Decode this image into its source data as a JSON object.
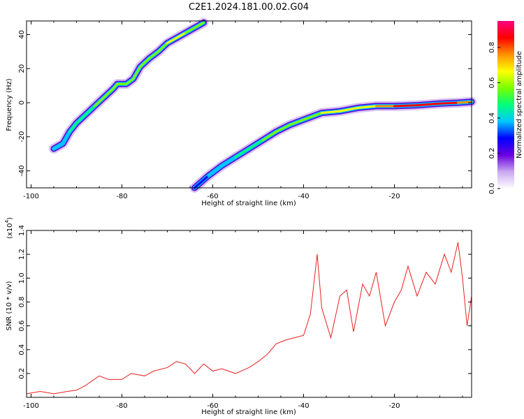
{
  "title": "C2E1.2024.181.00.02.G04",
  "chart_data": [
    {
      "type": "heatmap",
      "name": "spectrogram",
      "xlabel": "Height of straight line (km)",
      "ylabel": "Frequency (Hz)",
      "xlim": [
        -101,
        -3
      ],
      "ylim": [
        -50,
        48
      ],
      "xticks": [
        "-100",
        "-80",
        "-60",
        "-40",
        "-20"
      ],
      "xtick_values": [
        -100,
        -80,
        -60,
        -40,
        -20
      ],
      "yticks": [
        "40",
        "20",
        "0",
        "-20",
        "-40"
      ],
      "ytick_values": [
        40,
        20,
        0,
        -20,
        -40
      ],
      "grid": false,
      "colorbar": {
        "label": "Normalized spectral amplitude",
        "range": [
          0,
          0.95
        ],
        "ticks": [
          "0.0",
          "0.2",
          "0.4",
          "0.6",
          "0.8"
        ],
        "tick_values": [
          0.0,
          0.2,
          0.4,
          0.6,
          0.8
        ],
        "colors": [
          "#ffffff",
          "#c9a8f0",
          "#6a00e0",
          "#0000ff",
          "#00c8ff",
          "#00ff7a",
          "#7aff00",
          "#ffff00",
          "#ff9000",
          "#ff0000",
          "#ff0080"
        ]
      },
      "tracks": [
        {
          "name": "track 1",
          "points": [
            [
              -95,
              -27
            ],
            [
              -93,
              -24
            ],
            [
              -91.5,
              -17
            ],
            [
              -90,
              -12
            ],
            [
              -88,
              -7
            ],
            [
              -86,
              -2
            ],
            [
              -84,
              3
            ],
            [
              -82,
              8
            ],
            [
              -81,
              11
            ],
            [
              -79,
              11
            ],
            [
              -77.5,
              14
            ],
            [
              -76,
              21
            ],
            [
              -74,
              26
            ],
            [
              -72,
              30
            ],
            [
              -70,
              35
            ],
            [
              -68,
              38
            ],
            [
              -66,
              41
            ],
            [
              -64,
              44
            ],
            [
              -62,
              47
            ]
          ],
          "amplitude": [
            0.35,
            0.4,
            0.45,
            0.5,
            0.52,
            0.5,
            0.55,
            0.55,
            0.6,
            0.6,
            0.55,
            0.58,
            0.62,
            0.6,
            0.62,
            0.65,
            0.62,
            0.6,
            0.58
          ]
        },
        {
          "name": "track 2",
          "points": [
            [
              -64,
              -50
            ],
            [
              -61,
              -43
            ],
            [
              -58,
              -37
            ],
            [
              -55,
              -32
            ],
            [
              -52,
              -27
            ],
            [
              -49,
              -22
            ],
            [
              -46,
              -17
            ],
            [
              -43,
              -13
            ],
            [
              -40,
              -10
            ],
            [
              -36,
              -6
            ],
            [
              -32,
              -5
            ],
            [
              -28,
              -3
            ],
            [
              -24,
              -2
            ],
            [
              -20,
              -2
            ],
            [
              -15,
              -1.5
            ],
            [
              -10,
              -0.5
            ],
            [
              -6,
              0
            ],
            [
              -3,
              0.5
            ]
          ],
          "amplitude": [
            0.3,
            0.35,
            0.4,
            0.45,
            0.5,
            0.52,
            0.55,
            0.58,
            0.6,
            0.62,
            0.65,
            0.68,
            0.72,
            0.8,
            0.85,
            0.88,
            0.85,
            0.7
          ]
        }
      ]
    },
    {
      "type": "line",
      "name": "snr",
      "xlabel": "Height of straight line (km)",
      "ylabel": "SNR (10 * v/v)",
      "yscale_label": "(x10",
      "yscale_exp": "4",
      "xlim": [
        -101,
        -3
      ],
      "ylim": [
        0,
        1.4
      ],
      "xticks": [
        "-100",
        "-80",
        "-60",
        "-40",
        "-20"
      ],
      "xtick_values": [
        -100,
        -80,
        -60,
        -40,
        -20
      ],
      "yticks": [
        "0.2",
        "0.4",
        "0.6",
        "0.8",
        "1.0",
        "1.2",
        "1.4"
      ],
      "ytick_values": [
        0.2,
        0.4,
        0.6,
        0.8,
        1.0,
        1.2,
        1.4
      ],
      "grid": false,
      "color": "#e8201e",
      "series": [
        {
          "x": [
            -101,
            -98,
            -95,
            -92,
            -90,
            -88,
            -85,
            -83,
            -80,
            -78,
            -75,
            -73,
            -70,
            -68,
            -66,
            -64,
            -62,
            -60,
            -58,
            -55,
            -52,
            -50,
            -48,
            -46,
            -44,
            -42,
            -40,
            -38.5,
            -37,
            -36,
            -34,
            -32,
            -30.5,
            -29,
            -27,
            -25.5,
            -24,
            -22,
            -20,
            -18.5,
            -17,
            -15,
            -13,
            -11,
            -9,
            -7.5,
            -6,
            -5,
            -4,
            -3
          ],
          "y": [
            0.03,
            0.05,
            0.03,
            0.05,
            0.06,
            0.1,
            0.18,
            0.15,
            0.15,
            0.2,
            0.18,
            0.22,
            0.25,
            0.3,
            0.28,
            0.2,
            0.28,
            0.22,
            0.24,
            0.2,
            0.25,
            0.3,
            0.36,
            0.45,
            0.48,
            0.5,
            0.52,
            0.7,
            1.2,
            0.75,
            0.5,
            0.85,
            0.9,
            0.55,
            0.95,
            0.85,
            1.05,
            0.6,
            0.8,
            0.9,
            1.1,
            0.85,
            1.05,
            0.95,
            1.2,
            1.05,
            1.3,
            1.0,
            0.6,
            0.85
          ]
        }
      ]
    }
  ]
}
